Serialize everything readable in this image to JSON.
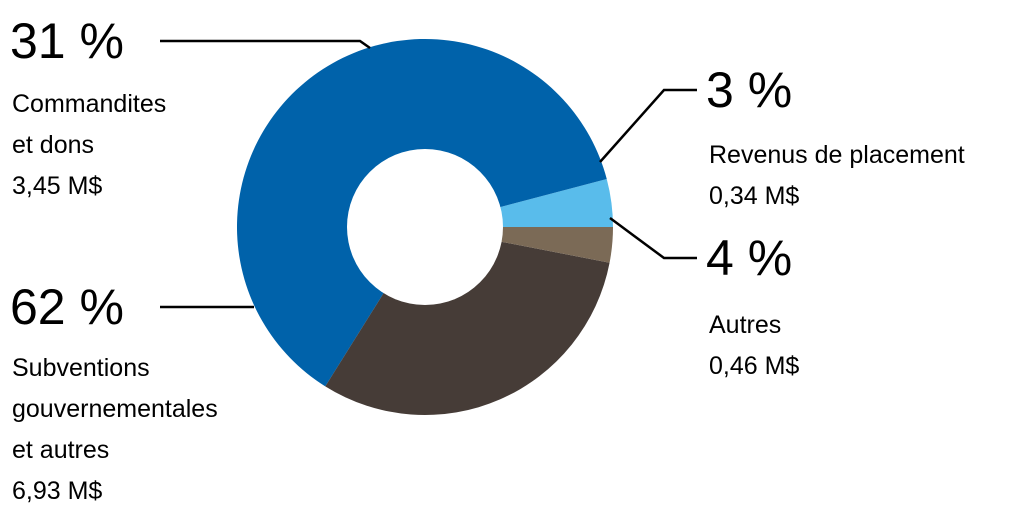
{
  "chart_data": {
    "type": "pie",
    "style": "donut",
    "slices": [
      {
        "key": "autres",
        "percent_label": "4 %",
        "lines": [
          "Autres"
        ],
        "amount": "0,46 M$",
        "value": 0.46,
        "color": "#59BCEB"
      },
      {
        "key": "subventions",
        "percent_label": "62 %",
        "lines": [
          "Subventions",
          "gouvernementales",
          "et autres"
        ],
        "amount": "6,93 M$",
        "value": 6.93,
        "color": "#0062AA"
      },
      {
        "key": "commandites",
        "percent_label": "31 %",
        "lines": [
          "Commandites",
          "et dons"
        ],
        "amount": "3,45 M$",
        "value": 3.45,
        "color": "#463C37"
      },
      {
        "key": "placement",
        "percent_label": "3 %",
        "lines": [
          "Revenus de placement"
        ],
        "amount": "0,34 M$",
        "value": 0.34,
        "color": "#7B6A56"
      }
    ]
  }
}
